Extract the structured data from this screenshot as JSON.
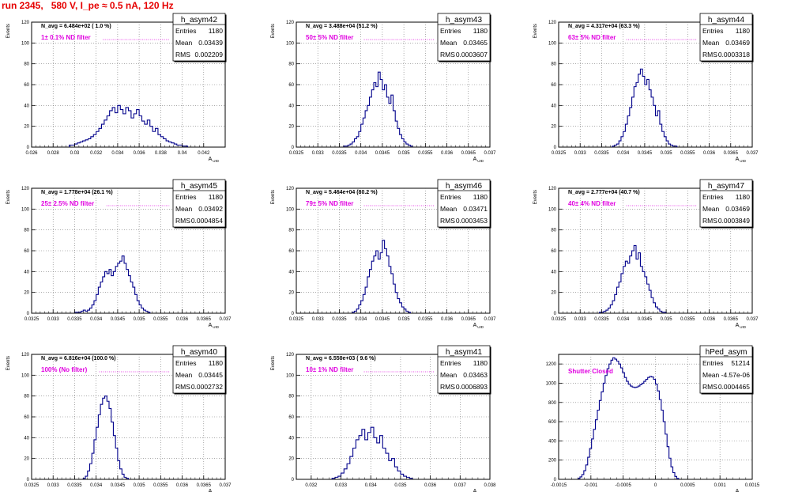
{
  "page_title": "run 2345,   580 V, I_pe ≈ 0.5 nA, 120 Hz",
  "colors": {
    "title": "#e60000",
    "histogram": "#00008b",
    "annotation": "#e000e0",
    "grid": "#777777"
  },
  "chart_data": [
    {
      "type": "histogram",
      "name": "h_asym42",
      "entries": "1180",
      "mean": "0.03439",
      "rms": "0.002209",
      "navg_label": "N_avg = 6.484e+02 ( 1.0 %)",
      "annotation": "1± 0.1% ND filter",
      "ylabel": "Events",
      "xlabel": "A_UID",
      "xlim": [
        0.026,
        0.044
      ],
      "ylim": [
        0,
        120
      ],
      "xticks": [
        "0.026",
        "0.028",
        "0.03",
        "0.032",
        "0.034",
        "0.036",
        "0.038",
        "0.04",
        "0.042"
      ],
      "xtick_values": [
        0.026,
        0.028,
        0.03,
        0.032,
        0.034,
        0.036,
        0.038,
        0.04,
        0.042
      ],
      "yticks": [
        0,
        20,
        40,
        60,
        80,
        100,
        120
      ],
      "bins_start": 0.0295,
      "bin_width": 0.00025,
      "counts": [
        2,
        2,
        3,
        4,
        5,
        6,
        7,
        8,
        10,
        12,
        15,
        18,
        22,
        26,
        30,
        35,
        38,
        33,
        40,
        36,
        32,
        38,
        35,
        28,
        32,
        36,
        30,
        25,
        22,
        26,
        20,
        15,
        18,
        12,
        10,
        8,
        6,
        5,
        4,
        3,
        2,
        2,
        1,
        1
      ]
    },
    {
      "type": "histogram",
      "name": "h_asym43",
      "entries": "1180",
      "mean": "0.03465",
      "rms": "0.0003607",
      "navg_label": "N_avg = 3.488e+04 (51.2 %)",
      "annotation": "50± 5% ND filter",
      "ylabel": "Events",
      "xlabel": "A_UID",
      "xlim": [
        0.0325,
        0.037
      ],
      "ylim": [
        0,
        120
      ],
      "xticks": [
        "0.0325",
        "0.033",
        "0.0335",
        "0.034",
        "0.0345",
        "0.035",
        "0.0355",
        "0.036",
        "0.0365",
        "0.037"
      ],
      "xtick_values": [
        0.0325,
        0.033,
        0.0335,
        0.034,
        0.0345,
        0.035,
        0.0355,
        0.036,
        0.0365,
        0.037
      ],
      "yticks": [
        0,
        20,
        40,
        60,
        80,
        100,
        120
      ],
      "bins_start": 0.0336,
      "bin_width": 5e-05,
      "counts": [
        1,
        1,
        2,
        3,
        5,
        8,
        10,
        15,
        22,
        28,
        35,
        40,
        48,
        55,
        62,
        58,
        72,
        65,
        55,
        60,
        48,
        42,
        50,
        35,
        25,
        18,
        12,
        8,
        5,
        3,
        2,
        1
      ]
    },
    {
      "type": "histogram",
      "name": "h_asym44",
      "entries": "1180",
      "mean": "0.03469",
      "rms": "0.0003318",
      "navg_label": "N_avg = 4.317e+04 (63.3 %)",
      "annotation": "63± 5% ND filter",
      "ylabel": "Events",
      "xlabel": "A_UID",
      "xlim": [
        0.0325,
        0.037
      ],
      "ylim": [
        0,
        120
      ],
      "xticks": [
        "0.0325",
        "0.033",
        "0.0335",
        "0.034",
        "0.0345",
        "0.035",
        "0.0355",
        "0.036",
        "0.0365",
        "0.037"
      ],
      "xtick_values": [
        0.0325,
        0.033,
        0.0335,
        0.034,
        0.0345,
        0.035,
        0.0355,
        0.036,
        0.0365,
        0.037
      ],
      "yticks": [
        0,
        20,
        40,
        60,
        80,
        100,
        120
      ],
      "bins_start": 0.03375,
      "bin_width": 5e-05,
      "counts": [
        1,
        2,
        3,
        6,
        10,
        15,
        22,
        30,
        38,
        48,
        58,
        62,
        70,
        75,
        68,
        60,
        65,
        55,
        48,
        40,
        30,
        35,
        22,
        15,
        10,
        6,
        3,
        2,
        1,
        1
      ]
    },
    {
      "type": "histogram",
      "name": "h_asym45",
      "entries": "1180",
      "mean": "0.03492",
      "rms": "0.0004854",
      "navg_label": "N_avg = 1.778e+04 (26.1 %)",
      "annotation": "25± 2.5% ND filter",
      "ylabel": "Events",
      "xlabel": "A_UID",
      "xlim": [
        0.0325,
        0.037
      ],
      "ylim": [
        0,
        120
      ],
      "xticks": [
        "0.0325",
        "0.033",
        "0.0335",
        "0.034",
        "0.0345",
        "0.035",
        "0.0355",
        "0.036",
        "0.0365",
        "0.037"
      ],
      "xtick_values": [
        0.0325,
        0.033,
        0.0335,
        0.034,
        0.0345,
        0.035,
        0.0355,
        0.036,
        0.0365,
        0.037
      ],
      "yticks": [
        0,
        20,
        40,
        60,
        80,
        100,
        120
      ],
      "bins_start": 0.0335,
      "bin_width": 5e-05,
      "counts": [
        1,
        1,
        1,
        2,
        3,
        2,
        3,
        5,
        8,
        12,
        18,
        25,
        30,
        35,
        40,
        38,
        42,
        36,
        40,
        45,
        48,
        50,
        55,
        48,
        42,
        36,
        30,
        25,
        18,
        12,
        8,
        5,
        3,
        2,
        1
      ]
    },
    {
      "type": "histogram",
      "name": "h_asym46",
      "entries": "1180",
      "mean": "0.03471",
      "rms": "0.0003453",
      "navg_label": "N_avg = 5.464e+04 (80.2 %)",
      "annotation": "79± 5% ND filter",
      "ylabel": "Events",
      "xlabel": "A_UID",
      "xlim": [
        0.0325,
        0.037
      ],
      "ylim": [
        0,
        120
      ],
      "xticks": [
        "0.0325",
        "0.033",
        "0.0335",
        "0.034",
        "0.0345",
        "0.035",
        "0.0355",
        "0.036",
        "0.0365",
        "0.037"
      ],
      "xtick_values": [
        0.0325,
        0.033,
        0.0335,
        0.034,
        0.0345,
        0.035,
        0.0355,
        0.036,
        0.0365,
        0.037
      ],
      "yticks": [
        0,
        20,
        40,
        60,
        80,
        100,
        120
      ],
      "bins_start": 0.0338,
      "bin_width": 5e-05,
      "counts": [
        1,
        2,
        4,
        8,
        12,
        18,
        25,
        35,
        42,
        50,
        55,
        60,
        52,
        58,
        70,
        62,
        55,
        45,
        38,
        28,
        20,
        14,
        10,
        6,
        4,
        2,
        1
      ]
    },
    {
      "type": "histogram",
      "name": "h_asym47",
      "entries": "1180",
      "mean": "0.03469",
      "rms": "0.0003849",
      "navg_label": "N_avg = 2.777e+04 (40.7 %)",
      "annotation": "40± 4% ND filter",
      "ylabel": "Events",
      "xlabel": "A_UID",
      "xlim": [
        0.0325,
        0.037
      ],
      "ylim": [
        0,
        120
      ],
      "xticks": [
        "0.0325",
        "0.033",
        "0.0335",
        "0.034",
        "0.0345",
        "0.035",
        "0.0355",
        "0.036",
        "0.0365",
        "0.037"
      ],
      "xtick_values": [
        0.0325,
        0.033,
        0.0335,
        0.034,
        0.0345,
        0.035,
        0.0355,
        0.036,
        0.0365,
        0.037
      ],
      "yticks": [
        0,
        20,
        40,
        60,
        80,
        100,
        120
      ],
      "bins_start": 0.03345,
      "bin_width": 5e-05,
      "counts": [
        1,
        1,
        2,
        3,
        5,
        8,
        12,
        18,
        25,
        30,
        38,
        45,
        50,
        48,
        55,
        60,
        65,
        52,
        58,
        45,
        40,
        35,
        28,
        22,
        15,
        10,
        6,
        4,
        2,
        1,
        1
      ]
    },
    {
      "type": "histogram",
      "name": "h_asym40",
      "entries": "1180",
      "mean": "0.03445",
      "rms": "0.0002732",
      "navg_label": "N_avg = 6.816e+04 (100.0 %)",
      "annotation": "100% (No filter)",
      "ylabel": "Events",
      "xlabel": "A_UID",
      "xlim": [
        0.0325,
        0.037
      ],
      "ylim": [
        0,
        120
      ],
      "xticks": [
        "0.0325",
        "0.033",
        "0.0335",
        "0.034",
        "0.0345",
        "0.035",
        "0.0355",
        "0.036",
        "0.0365",
        "0.037"
      ],
      "xtick_values": [
        0.0325,
        0.033,
        0.0335,
        0.034,
        0.0345,
        0.035,
        0.0355,
        0.036,
        0.0365,
        0.037
      ],
      "yticks": [
        0,
        20,
        40,
        60,
        80,
        100,
        120
      ],
      "bins_start": 0.0337,
      "bin_width": 5e-05,
      "counts": [
        1,
        3,
        8,
        15,
        25,
        38,
        50,
        62,
        72,
        78,
        80,
        75,
        68,
        55,
        42,
        30,
        18,
        10,
        5,
        2,
        1
      ]
    },
    {
      "type": "histogram",
      "name": "h_asym41",
      "entries": "1180",
      "mean": "0.03463",
      "rms": "0.0006893",
      "navg_label": "N_avg = 6.550e+03 ( 9.6 %)",
      "annotation": "10± 1% ND filter",
      "ylabel": "Events",
      "xlabel": "A_UID",
      "xlim": [
        0.0315,
        0.038
      ],
      "ylim": [
        0,
        120
      ],
      "xticks": [
        "0.032",
        "0.033",
        "0.034",
        "0.035",
        "0.036",
        "0.037",
        "0.038"
      ],
      "xtick_values": [
        0.032,
        0.033,
        0.034,
        0.035,
        0.036,
        0.037,
        0.038
      ],
      "yticks": [
        0,
        20,
        40,
        60,
        80,
        100,
        120
      ],
      "bins_start": 0.0327,
      "bin_width": 0.0001,
      "counts": [
        1,
        2,
        3,
        6,
        10,
        15,
        22,
        30,
        38,
        42,
        48,
        38,
        45,
        50,
        40,
        35,
        42,
        30,
        25,
        18,
        20,
        12,
        8,
        5,
        3,
        2,
        1
      ]
    },
    {
      "type": "histogram",
      "name": "hPed_asym",
      "entries": "51214",
      "mean": "-4.57e-06",
      "rms": "0.0004465",
      "navg_label": "",
      "annotation": "Shutter Closed",
      "ylabel": "",
      "xlabel": "A_UID",
      "xlim": [
        -0.0015,
        0.0015
      ],
      "ylim": [
        0,
        1300
      ],
      "xticks": [
        "-0.0015",
        "-0.001",
        "-0.0005",
        "0",
        "0.0005",
        "0.001",
        "0.0015"
      ],
      "xtick_values": [
        -0.0015,
        -0.001,
        -0.0005,
        0,
        0.0005,
        0.001,
        0.0015
      ],
      "yticks": [
        0,
        200,
        400,
        600,
        800,
        1000,
        1200
      ],
      "bins_start": -0.0012,
      "bin_width": 3e-05,
      "counts": [
        10,
        25,
        50,
        90,
        150,
        230,
        320,
        420,
        520,
        620,
        720,
        820,
        910,
        1000,
        1080,
        1150,
        1200,
        1240,
        1265,
        1250,
        1230,
        1200,
        1160,
        1110,
        1060,
        1020,
        990,
        970,
        960,
        955,
        960,
        970,
        985,
        1000,
        1020,
        1040,
        1060,
        1070,
        1065,
        1040,
        990,
        920,
        830,
        720,
        600,
        470,
        340,
        220,
        130,
        70,
        30,
        10
      ]
    }
  ]
}
